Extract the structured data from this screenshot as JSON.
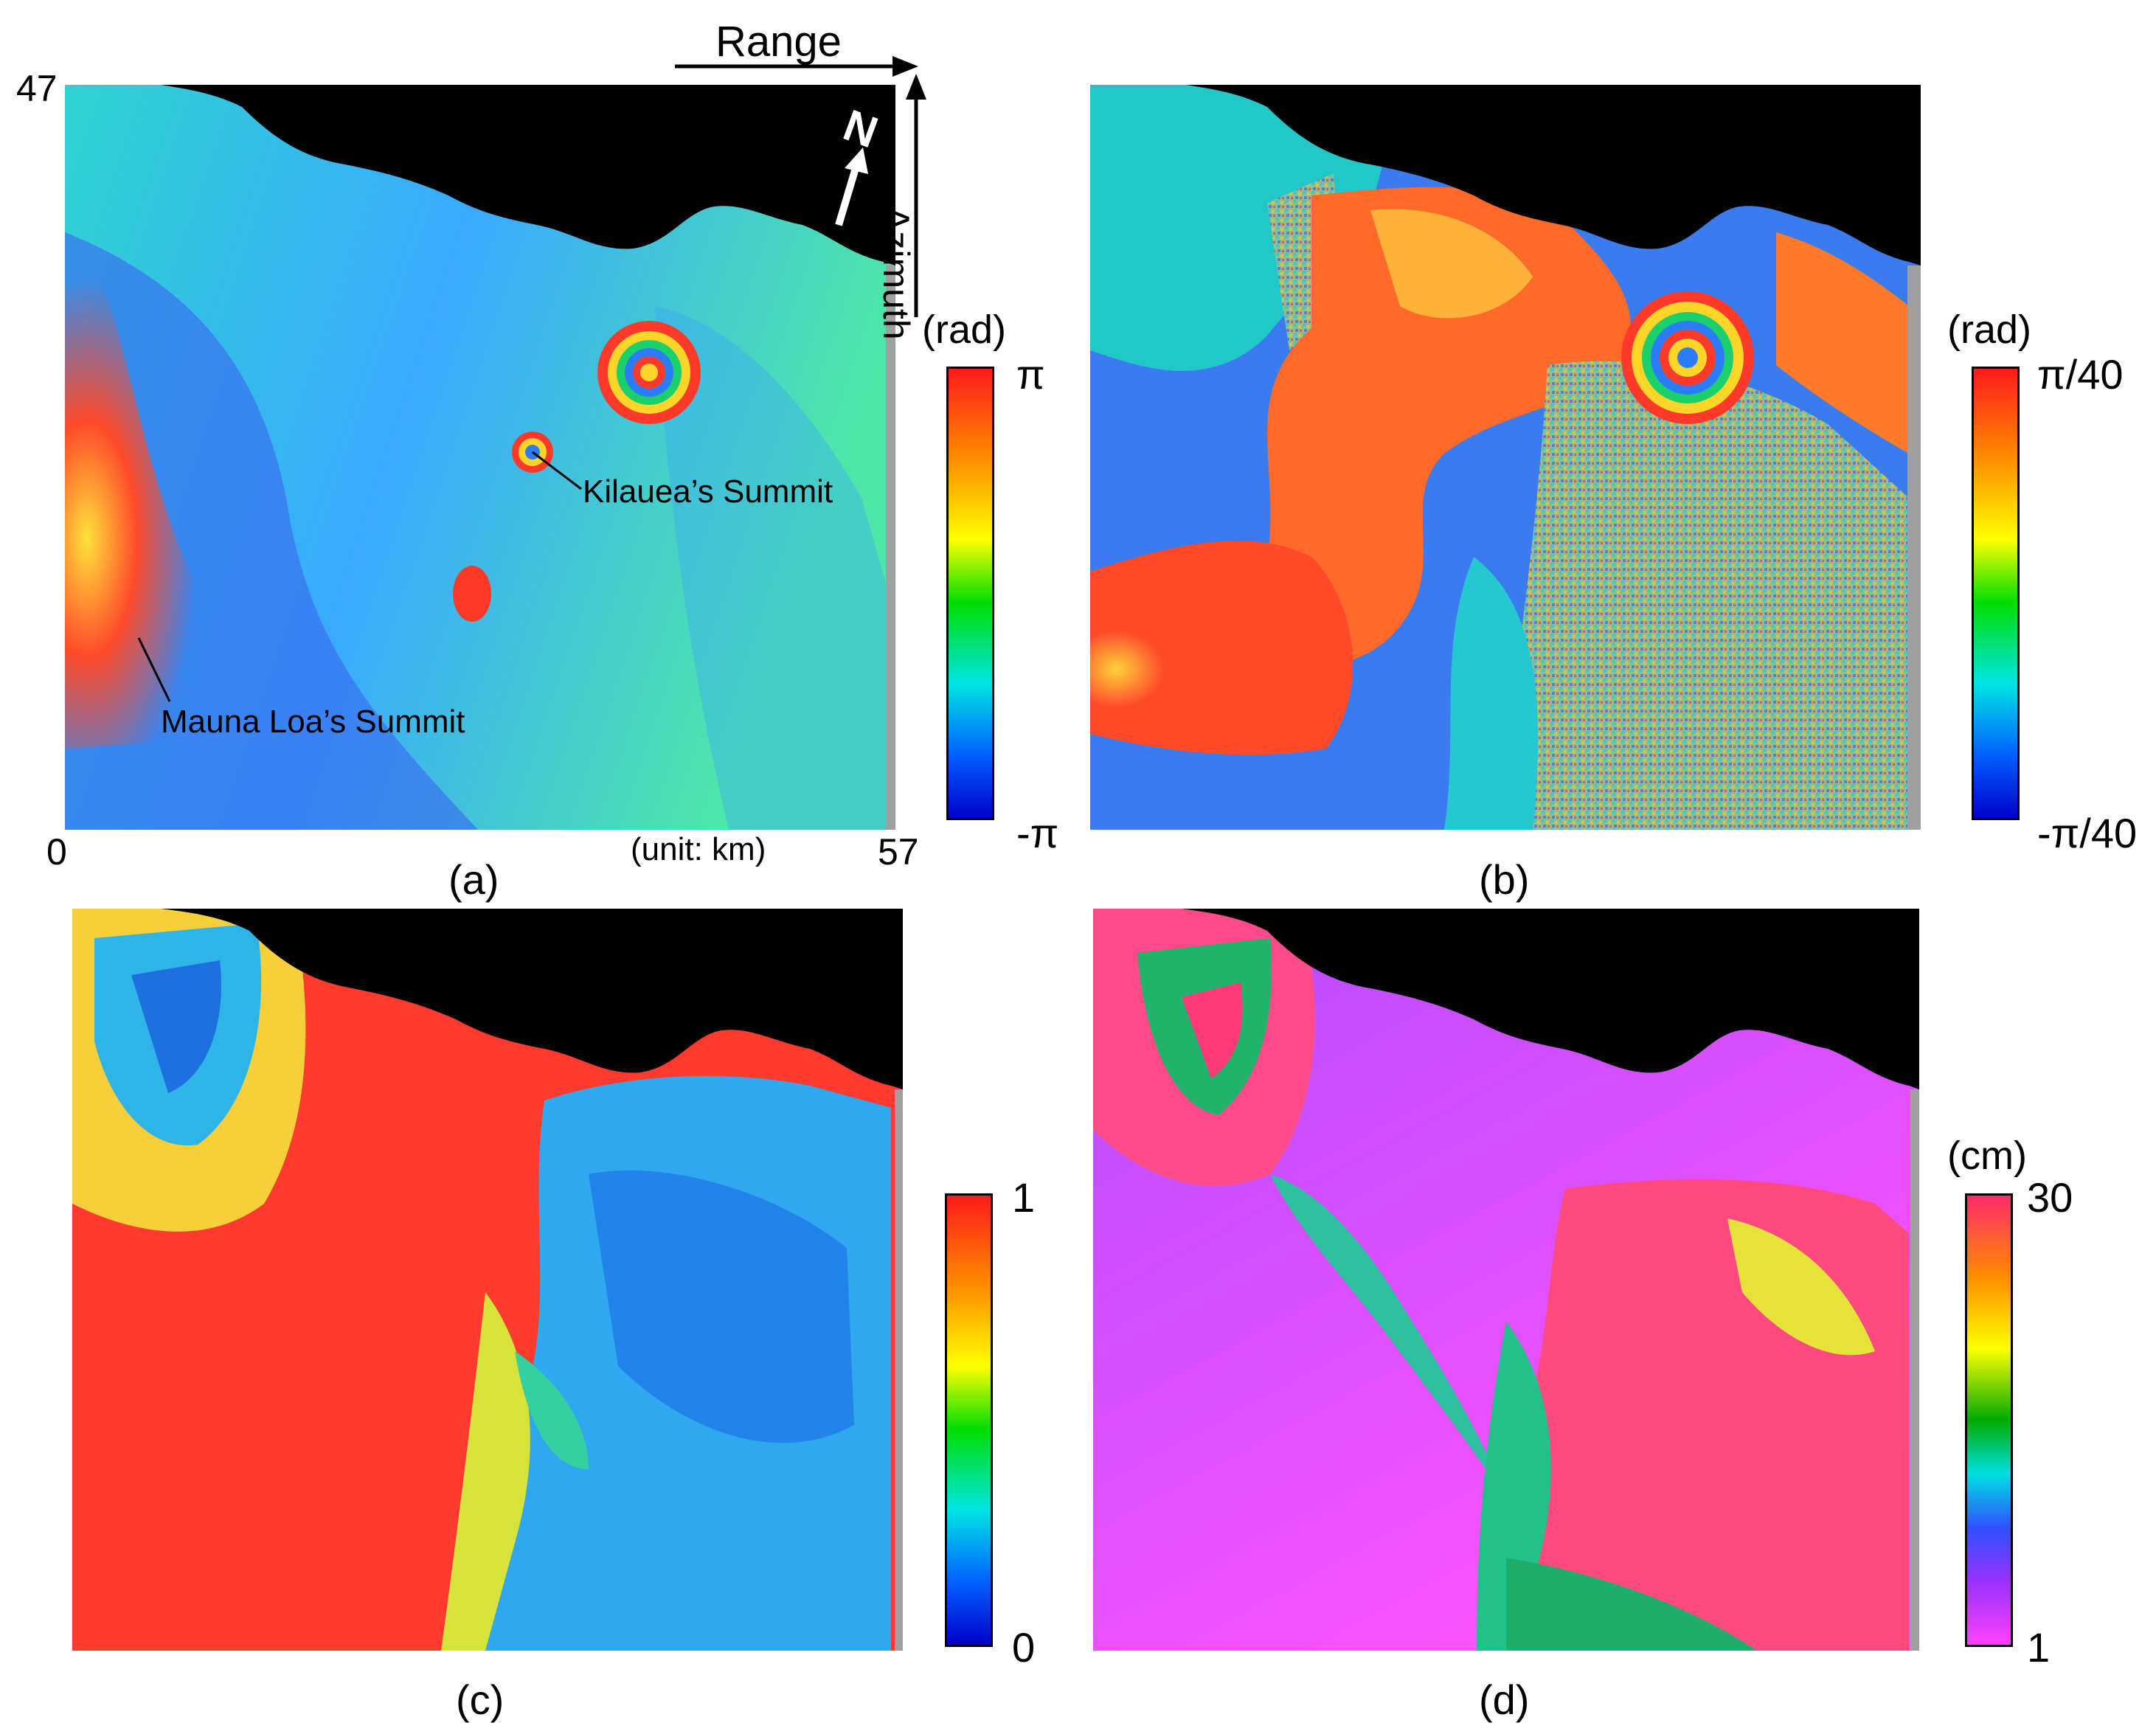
{
  "panels": {
    "a": {
      "caption": "(a)"
    },
    "b": {
      "caption": "(b)"
    },
    "c": {
      "caption": "(c)"
    },
    "d": {
      "caption": "(d)"
    }
  },
  "annotations": {
    "range": "Range",
    "azimuth": "Azimuth",
    "north": "N",
    "kilauea": "Kilauea’s Summit",
    "mauna_loa": "Mauna Loa’s Summit",
    "axis_top": "47",
    "axis_origin": "0",
    "axis_right": "57",
    "unit": "(unit: km)"
  },
  "colorbars": {
    "a": {
      "unit": "(rad)",
      "max": "π",
      "min": "-π",
      "colors": [
        "#ff1a1a",
        "#ff8c00",
        "#ffff00",
        "#00dd00",
        "#00e5e5",
        "#0060ff",
        "#0000cc"
      ]
    },
    "b": {
      "unit": "(rad)",
      "max": "π/40",
      "min": "-π/40",
      "colors": [
        "#ff1a1a",
        "#ff8c00",
        "#ffff00",
        "#00dd00",
        "#00e5e5",
        "#0060ff",
        "#0000cc"
      ]
    },
    "c": {
      "max": "1",
      "min": "0",
      "colors": [
        "#ff1a1a",
        "#ff8c00",
        "#ffff00",
        "#00dd00",
        "#00e5e5",
        "#0060ff",
        "#0000cc"
      ]
    },
    "d": {
      "unit": "(cm)",
      "max": "30",
      "min": "1",
      "colors": [
        "#ff2a6a",
        "#ff8c00",
        "#ffff00",
        "#00aa00",
        "#00e0e0",
        "#3050ff",
        "#9a30ff",
        "#ff40ff"
      ]
    }
  }
}
